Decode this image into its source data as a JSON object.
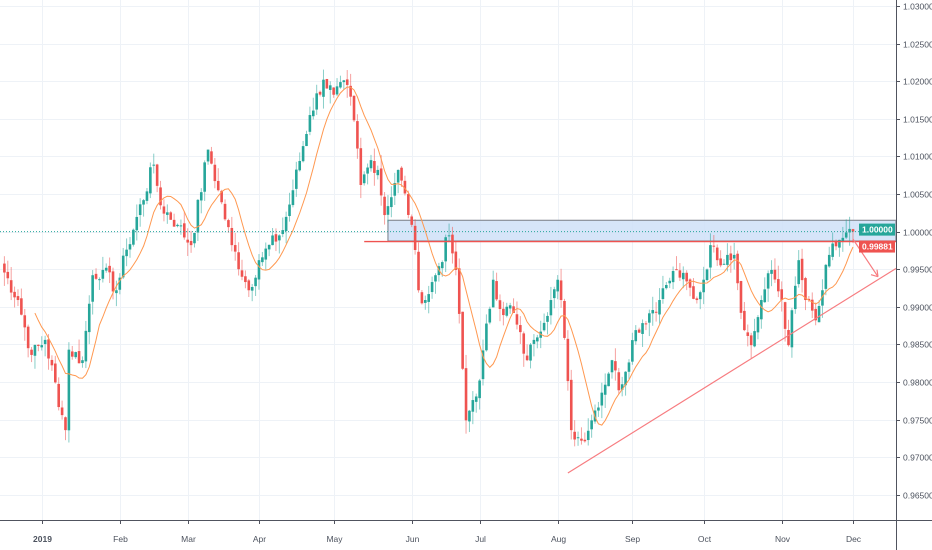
{
  "chart_data": {
    "type": "candlestick",
    "title": "",
    "xlabel": "",
    "ylabel": "",
    "ylim": [
      0.9625,
      1.0305
    ],
    "grid": true,
    "y_ticks": [
      "1.03000",
      "1.02500",
      "1.02000",
      "1.01500",
      "1.01000",
      "1.00500",
      "1.00000",
      "0.99500",
      "0.99000",
      "0.98500",
      "0.98000",
      "0.97500",
      "0.97000",
      "0.96500"
    ],
    "x_ticks": [
      "2019",
      "Feb",
      "Mar",
      "Apr",
      "May",
      "Jun",
      "Jul",
      "Aug",
      "Sep",
      "Oct",
      "Nov",
      "Dec"
    ],
    "start_date": "2018-12-14",
    "close_path": [
      [
        "2018-12-14",
        0.9955
      ],
      [
        "2018-12-21",
        0.9909
      ],
      [
        "2018-12-27",
        0.9836
      ],
      [
        "2019-01-02",
        0.9856
      ],
      [
        "2019-01-10",
        0.9736
      ],
      [
        "2019-01-11",
        0.9843
      ],
      [
        "2019-01-17",
        0.9829
      ],
      [
        "2019-01-22",
        0.9942
      ],
      [
        "2019-01-25",
        0.9949
      ],
      [
        "2019-01-31",
        0.9922
      ],
      [
        "2019-02-05",
        0.9976
      ],
      [
        "2019-02-15",
        1.0089
      ],
      [
        "2019-02-19",
        1.0035
      ],
      [
        "2019-02-26",
        1.0009
      ],
      [
        "2019-03-04",
        0.9982
      ],
      [
        "2019-03-11",
        1.0109
      ],
      [
        "2019-03-14",
        1.0055
      ],
      [
        "2019-03-20",
        0.9982
      ],
      [
        "2019-03-27",
        0.9922
      ],
      [
        "2019-04-01",
        0.9962
      ],
      [
        "2019-04-10",
        1.0002
      ],
      [
        "2019-04-15",
        1.0055
      ],
      [
        "2019-04-22",
        1.0155
      ],
      [
        "2019-04-26",
        1.0202
      ],
      [
        "2019-05-01",
        1.0182
      ],
      [
        "2019-05-07",
        1.0195
      ],
      [
        "2019-05-09",
        1.0148
      ],
      [
        "2019-05-13",
        1.0062
      ],
      [
        "2019-05-16",
        1.0095
      ],
      [
        "2019-05-20",
        1.0082
      ],
      [
        "2019-05-22",
        1.0022
      ],
      [
        "2019-05-28",
        1.0082
      ],
      [
        "2019-06-03",
        1.0009
      ],
      [
        "2019-06-05",
        0.9922
      ],
      [
        "2019-06-07",
        0.9909
      ],
      [
        "2019-06-12",
        0.9942
      ],
      [
        "2019-06-18",
        0.9995
      ],
      [
        "2019-06-20",
        0.9949
      ],
      [
        "2019-06-25",
        0.9749
      ],
      [
        "2019-06-27",
        0.9776
      ],
      [
        "2019-07-01",
        0.9802
      ],
      [
        "2019-07-05",
        0.9936
      ],
      [
        "2019-07-10",
        0.9889
      ],
      [
        "2019-07-12",
        0.9902
      ],
      [
        "2019-07-19",
        0.9829
      ],
      [
        "2019-07-23",
        0.9856
      ],
      [
        "2019-07-30",
        0.9909
      ],
      [
        "2019-08-01",
        0.9936
      ],
      [
        "2019-08-02",
        0.9909
      ],
      [
        "2019-08-07",
        0.9736
      ],
      [
        "2019-08-12",
        0.9722
      ],
      [
        "2019-08-15",
        0.9749
      ],
      [
        "2019-08-23",
        0.9829
      ],
      [
        "2019-08-27",
        0.9789
      ],
      [
        "2019-09-03",
        0.9869
      ],
      [
        "2019-09-12",
        0.9909
      ],
      [
        "2019-09-16",
        0.9929
      ],
      [
        "2019-09-19",
        0.9949
      ],
      [
        "2019-09-27",
        0.9909
      ],
      [
        "2019-10-01",
        0.9936
      ],
      [
        "2019-10-03",
        0.9982
      ],
      [
        "2019-10-07",
        0.9962
      ],
      [
        "2019-10-10",
        0.9969
      ],
      [
        "2019-10-14",
        0.9969
      ],
      [
        "2019-10-17",
        0.9869
      ],
      [
        "2019-10-21",
        0.9849
      ],
      [
        "2019-10-24",
        0.9909
      ],
      [
        "2019-10-29",
        0.9949
      ],
      [
        "2019-11-01",
        0.9909
      ],
      [
        "2019-11-05",
        0.9849
      ],
      [
        "2019-11-08",
        0.9962
      ],
      [
        "2019-11-12",
        0.9909
      ],
      [
        "2019-11-15",
        0.9882
      ],
      [
        "2019-11-19",
        0.9922
      ],
      [
        "2019-11-21",
        0.9969
      ],
      [
        "2019-11-26",
        0.9989
      ],
      [
        "2019-12-02",
        1.0
      ]
    ],
    "overlays": {
      "resistance_zone": {
        "top": 1.0015,
        "bottom": 0.99875,
        "from": "2019-05-23",
        "color": "#cfe0f8"
      },
      "horizontal_line": {
        "price": 0.99881,
        "from": "2019-05-14",
        "color": "#ef5350"
      },
      "current_price_line": {
        "price": 1.0,
        "color": "#26a69a"
      },
      "trendline": {
        "from": [
          "2019-08-06",
          0.9679
        ],
        "to": [
          "2019-12-13",
          0.9951
        ],
        "color": "#f77c80"
      },
      "arrow": {
        "from": [
          "2019-12-02",
          0.999
        ],
        "to": [
          "2019-12-11",
          0.994
        ],
        "color": "#f77c80"
      }
    },
    "price_labels": [
      {
        "text": "1.00000",
        "price": 1.0,
        "color": "#26a69a"
      },
      {
        "text": "0.99881",
        "price": 0.99881,
        "color": "#ef5350"
      }
    ],
    "colors": {
      "up": "#26a69a",
      "down": "#ef5350",
      "moving_average": "#ff9850",
      "grid": "#eef2f7"
    }
  }
}
